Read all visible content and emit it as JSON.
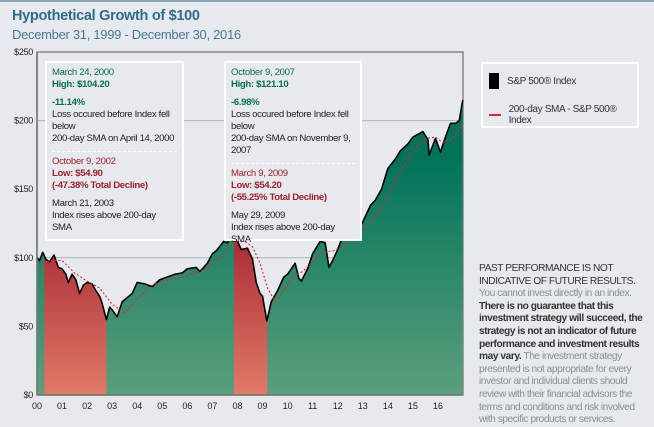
{
  "header": {
    "title": "Hypothetical Growth of $100",
    "subtitle": "December 31, 1999 - December 30, 2016"
  },
  "annotations": [
    {
      "high_date": "March 24, 2000",
      "high": "High: $104.20",
      "loss_pct": "-11.14%",
      "loss_text_1": "Loss occured before Index fell below",
      "loss_text_2": "200-day SMA on April 14, 2000",
      "low_date": "October 9, 2002",
      "low": "Low: $54.90",
      "decline": "(-47.38% Total Decline)",
      "rise_date": "March 21, 2003",
      "rise_text": "Index rises above 200-day SMA"
    },
    {
      "high_date": "October 9, 2007",
      "high": "High: $121.10",
      "loss_pct": "-6.98%",
      "loss_text_1": "Loss occured before Index fell below",
      "loss_text_2": "200-day SMA on November 9, 2007",
      "low_date": "March 9, 2009",
      "low": "Low: $54.20",
      "decline": "(-55.25% Total Decline)",
      "rise_date": "May 29, 2009",
      "rise_text": "Index rises above 200-day SMA"
    }
  ],
  "legend": {
    "series1": "S&P 500® Index",
    "series2": "200-day SMA - S&P 500® Index"
  },
  "disclaimer": {
    "heading": "PAST PERFORMANCE IS NOT INDICATIVE OF FUTURE RESULTS.",
    "p1": "You cannot invest directly in an index.",
    "p2": "There is no guarantee that this investment strategy will succeed, the strategy is not an indicator of future performance and investment results may vary.",
    "p3": "The investment strategy presented is not appropriate for every investor and individual clients should review with their financial advisors the terms and conditions and risk involved with specific products or services."
  },
  "colors": {
    "above_sma": "#00745a",
    "below_sma": "#a01e2c",
    "sma_line": "#e0262b",
    "title": "#2f6b8c"
  },
  "chart_data": {
    "type": "area",
    "title": "Hypothetical Growth of $100",
    "subtitle": "December 31, 1999 - December 30, 2016",
    "ylim": [
      0,
      250
    ],
    "yticks": [
      "$0",
      "$50",
      "$100",
      "$150",
      "$200",
      "$250"
    ],
    "ytick_values": [
      0,
      50,
      100,
      150,
      200,
      250
    ],
    "xlim": [
      2000,
      2017
    ],
    "xticks": [
      "00",
      "01",
      "02",
      "03",
      "04",
      "05",
      "06",
      "07",
      "08",
      "09",
      "10",
      "11",
      "12",
      "13",
      "14",
      "15",
      "16"
    ],
    "grid": "horizontal at $100 and $200",
    "legend_position": "right",
    "below_sma_periods": [
      [
        2000.29,
        2002.77
      ],
      [
        2007.86,
        2009.19
      ]
    ],
    "series": [
      {
        "name": "S&P 500® Index",
        "x": [
          2000.0,
          2000.1,
          2000.23,
          2000.35,
          2000.5,
          2000.68,
          2000.85,
          2001.0,
          2001.15,
          2001.25,
          2001.4,
          2001.55,
          2001.7,
          2001.85,
          2002.0,
          2002.2,
          2002.35,
          2002.5,
          2002.58,
          2002.77,
          2002.9,
          2003.0,
          2003.2,
          2003.4,
          2003.6,
          2003.8,
          2004.0,
          2004.3,
          2004.6,
          2004.9,
          2005.2,
          2005.5,
          2005.8,
          2006.0,
          2006.35,
          2006.5,
          2006.8,
          2007.0,
          2007.15,
          2007.45,
          2007.6,
          2007.78,
          2007.95,
          2008.15,
          2008.4,
          2008.6,
          2008.75,
          2008.9,
          2009.0,
          2009.17,
          2009.35,
          2009.6,
          2009.85,
          2010.0,
          2010.3,
          2010.45,
          2010.55,
          2010.8,
          2011.0,
          2011.3,
          2011.5,
          2011.65,
          2011.8,
          2012.0,
          2012.25,
          2012.45,
          2012.7,
          2012.9,
          2013.0,
          2013.3,
          2013.5,
          2013.75,
          2014.0,
          2014.3,
          2014.5,
          2014.8,
          2015.0,
          2015.4,
          2015.6,
          2015.65,
          2015.9,
          2016.1,
          2016.3,
          2016.5,
          2016.7,
          2016.85,
          2016.99
        ],
        "values": [
          100,
          98,
          104,
          99,
          97,
          102,
          93,
          92,
          88,
          82,
          88,
          84,
          74,
          80,
          82,
          81,
          76,
          72,
          68,
          55,
          64,
          62,
          57,
          68,
          71,
          74,
          82,
          81,
          79,
          84,
          86,
          88,
          89,
          92,
          93,
          90,
          96,
          103,
          105,
          112,
          111,
          121,
          114,
          106,
          107,
          99,
          82,
          74,
          72,
          54,
          68,
          76,
          86,
          88,
          96,
          85,
          83,
          92,
          103,
          112,
          111,
          93,
          98,
          106,
          118,
          113,
          120,
          123,
          126,
          138,
          142,
          150,
          165,
          172,
          178,
          183,
          188,
          192,
          186,
          175,
          187,
          177,
          188,
          198,
          198,
          200,
          215
        ]
      },
      {
        "name": "200-day SMA - S&P 500® Index",
        "x": [
          2000.0,
          2000.5,
          2001.0,
          2001.5,
          2002.0,
          2002.5,
          2003.0,
          2003.5,
          2004.0,
          2004.5,
          2005.0,
          2005.5,
          2006.0,
          2006.5,
          2007.0,
          2007.5,
          2007.9,
          2008.3,
          2008.6,
          2008.9,
          2009.2,
          2009.5,
          2009.8,
          2010.2,
          2010.6,
          2011.0,
          2011.4,
          2011.8,
          2012.2,
          2012.6,
          2013.0,
          2013.5,
          2014.0,
          2014.5,
          2015.0,
          2015.5,
          2015.9,
          2016.2,
          2016.6,
          2016.99
        ],
        "values": [
          92,
          98,
          98,
          89,
          83,
          78,
          66,
          60,
          70,
          79,
          83,
          85,
          87,
          90,
          95,
          103,
          112,
          112,
          108,
          96,
          78,
          68,
          75,
          86,
          90,
          97,
          104,
          105,
          108,
          116,
          120,
          130,
          145,
          163,
          178,
          187,
          188,
          184,
          187,
          197
        ]
      }
    ]
  }
}
